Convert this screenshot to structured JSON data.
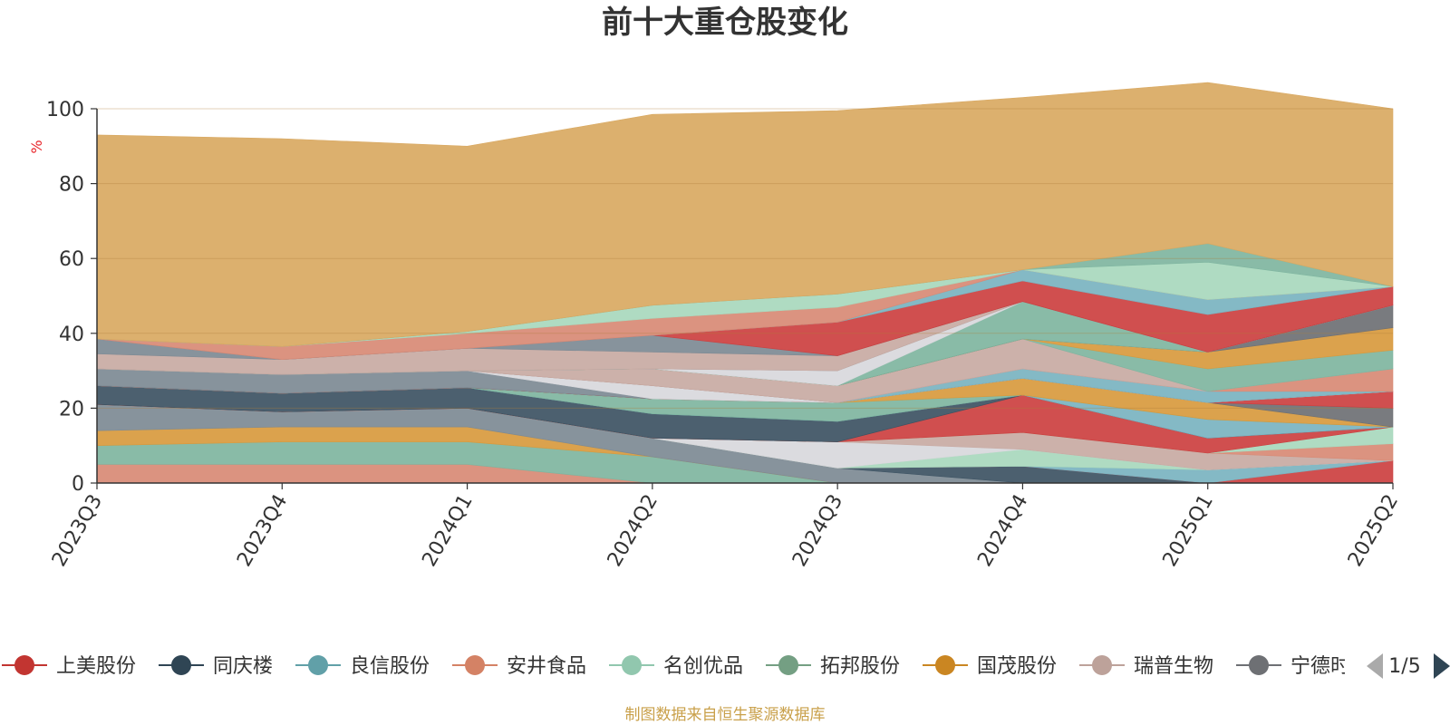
{
  "title": "前十大重仓股变化",
  "unit": "%",
  "source": "制图数据来自恒生聚源数据库",
  "pager": {
    "text": "1/5",
    "prev_icon": "arrow-left-icon",
    "next_icon": "arrow-right-icon"
  },
  "legend": [
    {
      "name": "上美股份",
      "color": "#c23531"
    },
    {
      "name": "同庆楼",
      "color": "#2f4554"
    },
    {
      "name": "良信股份",
      "color": "#61a0a8"
    },
    {
      "name": "安井食品",
      "color": "#d48265"
    },
    {
      "name": "名创优品",
      "color": "#91c7ae"
    },
    {
      "name": "拓邦股份",
      "color": "#749f83"
    },
    {
      "name": "国茂股份",
      "color": "#ca8622"
    },
    {
      "name": "瑞普生物",
      "color": "#bda29a"
    },
    {
      "name": "宁德时代",
      "color": "#6e7074"
    }
  ],
  "chart_data": {
    "type": "area",
    "stacked": true,
    "title": "前十大重仓股变化",
    "ylabel": "%",
    "ylim": [
      0,
      100
    ],
    "yticks": [
      0,
      20,
      40,
      60,
      80,
      100
    ],
    "categories": [
      "2023Q3",
      "2023Q4",
      "2024Q1",
      "2024Q2",
      "2024Q3",
      "2024Q4",
      "2025Q1",
      "2025Q2"
    ],
    "layers": [
      {
        "color": "#d88a75",
        "values": [
          5,
          5,
          5,
          0,
          0,
          0,
          0,
          0
        ]
      },
      {
        "color": "#7fb5a0",
        "values": [
          5,
          6,
          6,
          7,
          0,
          0,
          0,
          0
        ]
      },
      {
        "color": "#d89a3e",
        "values": [
          4,
          4,
          4,
          0,
          0,
          0,
          0,
          0
        ]
      },
      {
        "color": "#7d8a94",
        "values": [
          7,
          4,
          5,
          5,
          4,
          0,
          0,
          0
        ]
      },
      {
        "color": "#3d5363",
        "values": [
          0,
          0,
          0,
          0,
          0,
          4.5,
          0,
          0
        ]
      },
      {
        "color": "#cc4040",
        "values": [
          0,
          0,
          0,
          0,
          0,
          0,
          0,
          6
        ]
      },
      {
        "color": "#7ab3c0",
        "values": [
          0,
          0,
          0,
          0,
          0,
          0,
          3.5,
          0
        ]
      },
      {
        "color": "#a8d8bd",
        "values": [
          0,
          0,
          0,
          0,
          0,
          4.5,
          0,
          0
        ]
      },
      {
        "color": "#d8d8dc",
        "values": [
          0,
          0,
          0,
          0,
          7,
          0,
          0,
          0
        ]
      },
      {
        "color": "#c8aaa3",
        "values": [
          0,
          0,
          0,
          0,
          0,
          4.5,
          4.5,
          0
        ]
      },
      {
        "color": "#d88a75",
        "values": [
          0,
          0,
          0,
          0,
          0,
          0,
          0,
          4.5
        ]
      },
      {
        "color": "#a8d8bd",
        "values": [
          0,
          0,
          0,
          0,
          0,
          0,
          0,
          4.5
        ]
      },
      {
        "color": "#cc4040",
        "values": [
          0,
          0,
          0,
          0,
          0,
          10,
          4,
          0
        ]
      },
      {
        "color": "#3d5363",
        "values": [
          5,
          5,
          5.5,
          6.5,
          5.5,
          0,
          0,
          0
        ]
      },
      {
        "color": "#7ab3c0",
        "values": [
          0,
          0,
          0,
          0,
          0,
          0,
          5,
          0
        ]
      },
      {
        "color": "#7fb5a0",
        "values": [
          0,
          0,
          0,
          4,
          5,
          0,
          0,
          0
        ]
      },
      {
        "color": "#d89a3e",
        "values": [
          0,
          0,
          0,
          0,
          0,
          4.5,
          4.5,
          0
        ]
      },
      {
        "color": "#6e7074",
        "values": [
          0,
          0,
          0,
          0,
          0,
          0,
          0,
          5
        ]
      },
      {
        "color": "#cc4040",
        "values": [
          0,
          0,
          0,
          0,
          0,
          0,
          0,
          4.5
        ]
      },
      {
        "color": "#7d8a94",
        "values": [
          4.5,
          5,
          4.5,
          0,
          0,
          0,
          0,
          0
        ]
      },
      {
        "color": "#d8d8dc",
        "values": [
          0,
          0,
          0,
          3.5,
          0,
          0,
          0,
          0
        ]
      },
      {
        "color": "#7ab3c0",
        "values": [
          0,
          0,
          0,
          0,
          0,
          2.5,
          3,
          0
        ]
      },
      {
        "color": "#d88a75",
        "values": [
          0,
          0,
          0,
          0,
          0,
          0,
          0,
          6
        ]
      },
      {
        "color": "#c8aaa3",
        "values": [
          0,
          0,
          0,
          4.5,
          4.5,
          8,
          0,
          0
        ]
      },
      {
        "color": "#7fb5a0",
        "values": [
          0,
          0,
          0,
          0,
          0,
          0,
          6,
          5
        ]
      },
      {
        "color": "#d89a3e",
        "values": [
          0,
          0,
          0,
          0,
          0,
          0,
          4.5,
          6
        ]
      },
      {
        "color": "#6e7074",
        "values": [
          0,
          0,
          0,
          0,
          0,
          0,
          0,
          6
        ]
      },
      {
        "color": "#7fb5a0",
        "values": [
          0,
          0,
          0,
          0,
          0,
          10,
          0,
          0
        ]
      },
      {
        "color": "#d8d8dc",
        "values": [
          0,
          0,
          0,
          0,
          4,
          0,
          0,
          0
        ]
      },
      {
        "color": "#8a9aa3",
        "values": [
          0,
          0,
          0,
          0,
          0,
          0,
          0,
          0
        ]
      },
      {
        "color": "#c8aaa3",
        "values": [
          4,
          4,
          6,
          4.5,
          4,
          0,
          0,
          0
        ]
      },
      {
        "color": "#7d8a94",
        "values": [
          4,
          0,
          0,
          4.5,
          0,
          0,
          0,
          0
        ]
      },
      {
        "color": "#cc4040",
        "values": [
          0,
          0,
          0,
          0,
          9,
          5.5,
          10,
          5
        ]
      },
      {
        "color": "#7ab3c0",
        "values": [
          0,
          0,
          0,
          0,
          0,
          3,
          4,
          0
        ]
      },
      {
        "color": "#d88a75",
        "values": [
          0,
          3.5,
          4,
          4.5,
          4,
          0,
          0,
          0
        ]
      },
      {
        "color": "#a8d8bd",
        "values": [
          0,
          0,
          0.5,
          3.5,
          3.5,
          0,
          10,
          0
        ]
      },
      {
        "color": "#7fb5a0",
        "values": [
          0,
          0,
          0,
          0,
          0,
          0,
          5,
          0
        ]
      },
      {
        "color": "#d9a962",
        "values": [
          54.5,
          55.5,
          49.5,
          51,
          49,
          46,
          43,
          47.5
        ]
      }
    ]
  }
}
